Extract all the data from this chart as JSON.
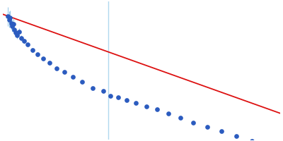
{
  "title": "",
  "background_color": "#ffffff",
  "fit_color": "#dd1111",
  "fit_linewidth": 1.3,
  "data_color": "#2b5bbf",
  "data_marker": "o",
  "data_markersize": 3.8,
  "error_color": "#90c4e8",
  "error_linewidth": 0.7,
  "vline_color": "#b0d8ee",
  "vline_linewidth": 1.0,
  "figsize": [
    4.0,
    2.0
  ],
  "dpi": 100,
  "xlim": [
    -2e-05,
    0.00385
  ],
  "ylim": [
    4.0,
    7.2
  ],
  "vline_x": 0.00145,
  "fit_x0": -5e-05,
  "fit_x1": 0.0039,
  "fit_y0": 6.92,
  "fit_y1": 4.58,
  "data_points": [
    [
      5e-05,
      6.85,
      0.22
    ],
    [
      6.5e-05,
      6.78,
      0.19
    ],
    [
      8e-05,
      6.82,
      0.17
    ],
    [
      9.5e-05,
      6.7,
      0.16
    ],
    [
      0.00011,
      6.63,
      0.14
    ],
    [
      0.000125,
      6.68,
      0.13
    ],
    [
      0.00014,
      6.55,
      0.12
    ],
    [
      0.00016,
      6.48,
      0.1
    ],
    [
      0.00018,
      6.42,
      0.09
    ],
    [
      0.00021,
      6.5,
      0.08
    ],
    [
      0.00024,
      6.35,
      0.07
    ],
    [
      0.00028,
      6.28,
      0.06
    ],
    [
      0.00033,
      6.2,
      0.05
    ],
    [
      0.00039,
      6.07,
      0.05
    ],
    [
      0.00046,
      5.98,
      0.04
    ],
    [
      0.00054,
      5.88,
      0.04
    ],
    [
      0.00063,
      5.78,
      0.04
    ],
    [
      0.00073,
      5.65,
      0.04
    ],
    [
      0.00084,
      5.56,
      0.03
    ],
    [
      0.00096,
      5.45,
      0.03
    ],
    [
      0.00109,
      5.34,
      0.03
    ],
    [
      0.00123,
      5.2,
      0.03
    ],
    [
      0.00138,
      5.12,
      0.03
    ],
    [
      0.00148,
      5.02,
      0.03
    ],
    [
      0.00159,
      4.98,
      0.03
    ],
    [
      0.00171,
      4.92,
      0.03
    ],
    [
      0.00184,
      4.85,
      0.03
    ],
    [
      0.00198,
      4.77,
      0.03
    ],
    [
      0.00213,
      4.7,
      0.03
    ],
    [
      0.00229,
      4.6,
      0.03
    ],
    [
      0.00246,
      4.5,
      0.03
    ],
    [
      0.00264,
      4.4,
      0.03
    ],
    [
      0.00283,
      4.3,
      0.03
    ],
    [
      0.00303,
      4.19,
      0.03
    ],
    [
      0.00324,
      4.08,
      0.03
    ],
    [
      0.00346,
      3.97,
      0.03
    ],
    [
      0.00368,
      3.88,
      0.03
    ]
  ]
}
